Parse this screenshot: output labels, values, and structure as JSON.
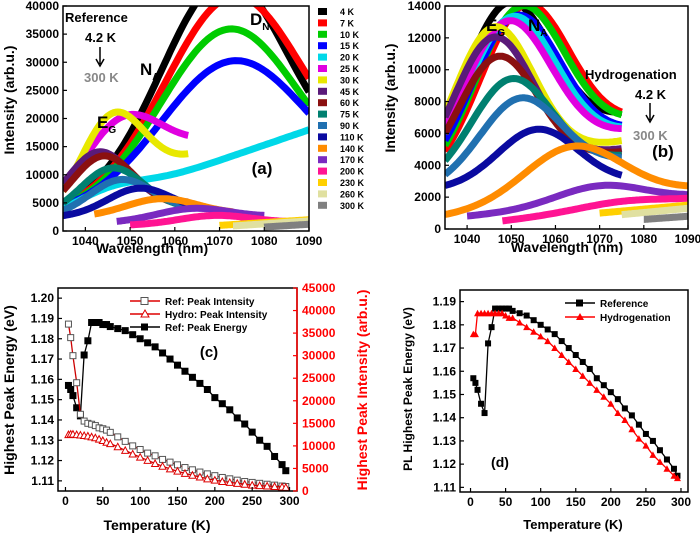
{
  "chart_data": [
    {
      "panel_label": "(a)",
      "type": "area",
      "xlabel": "Wavelength (nm)",
      "ylabel": "Intensity (arb.u.)",
      "xlim": [
        1035,
        1090
      ],
      "ylim": [
        0,
        40000
      ],
      "xticks": [
        1040,
        1050,
        1060,
        1070,
        1080,
        1090
      ],
      "yticks": [
        0,
        5000,
        10000,
        15000,
        20000,
        25000,
        30000,
        35000,
        40000
      ],
      "annotations": {
        "reference": "Reference",
        "t_high": "4.2 K",
        "t_low": "300 K",
        "dn": "D",
        "dn_sub": "N",
        "na": "N",
        "na_sub": "A",
        "eg": "E",
        "eg_sub": "G"
      },
      "legend": [
        "4 K",
        "7 K",
        "10 K",
        "15 K",
        "20 K",
        "25 K",
        "30 K",
        "45 K",
        "60 K",
        "75 K",
        "90 K",
        "110 K",
        "140 K",
        "170 K",
        "200 K",
        "230 K",
        "260 K",
        "300 K"
      ],
      "colors": [
        "#000000",
        "#ff0000",
        "#00cc00",
        "#0000ff",
        "#00d8e8",
        "#e000e0",
        "#e8e800",
        "#5a1a7a",
        "#8b1010",
        "#008070",
        "#2070b0",
        "#0a0aa0",
        "#ff8c00",
        "#7a2ac0",
        "#ff1493",
        "#ffd000",
        "#e0e0a0",
        "#808080"
      ],
      "series": [
        {
          "name": "4 K",
          "x0": 1035,
          "x1": 1090,
          "base0": 3500,
          "base1": 10000,
          "peaks": [
            [
              1071,
              37000,
              14
            ]
          ]
        },
        {
          "name": "7 K",
          "x0": 1035,
          "x1": 1090,
          "base0": 3300,
          "base1": 9000,
          "peaks": [
            [
              1073,
              34500,
              15
            ]
          ]
        },
        {
          "name": "10 K",
          "x0": 1035,
          "x1": 1090,
          "base0": 3100,
          "base1": 8000,
          "peaks": [
            [
              1072,
              29500,
              15
            ]
          ]
        },
        {
          "name": "15 K",
          "x0": 1035,
          "x1": 1090,
          "base0": 3000,
          "base1": 7000,
          "peaks": [
            [
              1073,
              24500,
              16
            ]
          ]
        },
        {
          "name": "20 K",
          "x0": 1035,
          "x1": 1090,
          "base0": 3000,
          "base1": 18000,
          "peaks": [
            [
              1045,
              2000,
              8
            ]
          ]
        },
        {
          "name": "25 K",
          "x0": 1035,
          "x1": 1063,
          "base0": 3200,
          "base1": 14000,
          "peaks": [
            [
              1048,
              12000,
              9
            ]
          ]
        },
        {
          "name": "30 K",
          "x0": 1035,
          "x1": 1063,
          "base0": 3000,
          "base1": 13000,
          "peaks": [
            [
              1046,
              14000,
              7
            ]
          ]
        },
        {
          "name": "45 K",
          "x0": 1035,
          "x1": 1063,
          "base0": 3000,
          "base1": 5000,
          "peaks": [
            [
              1043,
              10500,
              7
            ]
          ]
        },
        {
          "name": "60 K",
          "x0": 1035,
          "x1": 1063,
          "base0": 2800,
          "base1": 4500,
          "peaks": [
            [
              1044,
              10000,
              7
            ]
          ]
        },
        {
          "name": "75 K",
          "x0": 1035,
          "x1": 1063,
          "base0": 2700,
          "base1": 4000,
          "peaks": [
            [
              1046,
              8000,
              7
            ]
          ]
        },
        {
          "name": "90 K",
          "x0": 1035,
          "x1": 1063,
          "base0": 2600,
          "base1": 3800,
          "peaks": [
            [
              1048,
              6000,
              7
            ]
          ]
        },
        {
          "name": "110 K",
          "x0": 1035,
          "x1": 1063,
          "base0": 2500,
          "base1": 3500,
          "peaks": [
            [
              1052,
              4500,
              7
            ]
          ]
        },
        {
          "name": "140 K",
          "x0": 1042,
          "x1": 1073,
          "base0": 2500,
          "base1": 3000,
          "peaks": [
            [
              1057,
              3000,
              8
            ]
          ]
        },
        {
          "name": "170 K",
          "x0": 1047,
          "x1": 1080,
          "base0": 1500,
          "base1": 2500,
          "peaks": [
            [
              1064,
              2000,
              8
            ]
          ]
        },
        {
          "name": "200 K",
          "x0": 1050,
          "x1": 1085,
          "base0": 1000,
          "base1": 1500,
          "peaks": [
            [
              1069,
              1500,
              8
            ]
          ]
        },
        {
          "name": "230 K",
          "x0": 1070,
          "x1": 1090,
          "base0": 1000,
          "base1": 2000,
          "peaks": []
        },
        {
          "name": "260 K",
          "x0": 1073,
          "x1": 1090,
          "base0": 900,
          "base1": 1800,
          "peaks": []
        },
        {
          "name": "300 K",
          "x0": 1080,
          "x1": 1090,
          "base0": 700,
          "base1": 1200,
          "peaks": []
        }
      ]
    },
    {
      "panel_label": "(b)",
      "type": "area",
      "xlabel": "Wavelength (nm)",
      "ylabel": "Intensity (arb.u.)",
      "xlim": [
        1035,
        1090
      ],
      "ylim": [
        0,
        14000
      ],
      "xticks": [
        1040,
        1050,
        1060,
        1070,
        1080,
        1090
      ],
      "yticks": [
        0,
        2000,
        4000,
        6000,
        8000,
        10000,
        12000,
        14000
      ],
      "annotations": {
        "eg": "E",
        "eg_sub": "G",
        "na": "N",
        "na_sub": "A",
        "hydro": "Hydrogenation",
        "t_high": "4.2 K",
        "t_low": "300 K"
      },
      "series": [
        {
          "name": "4 K",
          "x0": 1035,
          "x1": 1075,
          "base0": 3000,
          "base1": 7000,
          "peaks": [
            [
              1049,
              9800,
              10
            ]
          ]
        },
        {
          "name": "7 K",
          "x0": 1035,
          "x1": 1075,
          "base0": 3000,
          "base1": 6500,
          "peaks": [
            [
              1053,
              9500,
              10
            ]
          ]
        },
        {
          "name": "10 K",
          "x0": 1035,
          "x1": 1075,
          "base0": 3000,
          "base1": 6500,
          "peaks": [
            [
              1052,
              9500,
              10
            ]
          ]
        },
        {
          "name": "15 K",
          "x0": 1035,
          "x1": 1075,
          "base0": 3000,
          "base1": 6000,
          "peaks": [
            [
              1051,
              9200,
              10
            ]
          ]
        },
        {
          "name": "20 K",
          "x0": 1035,
          "x1": 1075,
          "base0": 3000,
          "base1": 6000,
          "peaks": [
            [
              1050,
              9200,
              10
            ]
          ]
        },
        {
          "name": "25 K",
          "x0": 1035,
          "x1": 1075,
          "base0": 3000,
          "base1": 6000,
          "peaks": [
            [
              1049,
              9000,
              10
            ]
          ]
        },
        {
          "name": "30 K",
          "x0": 1035,
          "x1": 1075,
          "base0": 3000,
          "base1": 5500,
          "peaks": [
            [
              1046,
              9000,
              9
            ]
          ]
        },
        {
          "name": "45 K",
          "x0": 1035,
          "x1": 1075,
          "base0": 3000,
          "base1": 5000,
          "peaks": [
            [
              1046,
              8500,
              9
            ]
          ]
        },
        {
          "name": "60 K",
          "x0": 1035,
          "x1": 1075,
          "base0": 3000,
          "base1": 4800,
          "peaks": [
            [
              1047,
              7300,
              9
            ]
          ]
        },
        {
          "name": "75 K",
          "x0": 1035,
          "x1": 1075,
          "base0": 2800,
          "base1": 4500,
          "peaks": [
            [
              1050,
              6000,
              9
            ]
          ]
        },
        {
          "name": "90 K",
          "x0": 1035,
          "x1": 1075,
          "base0": 2600,
          "base1": 4300,
          "peaks": [
            [
              1052,
              4900,
              9
            ]
          ]
        },
        {
          "name": "110 K",
          "x0": 1035,
          "x1": 1075,
          "base0": 2500,
          "base1": 3000,
          "peaks": [
            [
              1056,
              3500,
              9
            ]
          ]
        },
        {
          "name": "140 K",
          "x0": 1035,
          "x1": 1090,
          "base0": 800,
          "base1": 2500,
          "peaks": [
            [
              1064,
              3500,
              11
            ]
          ]
        },
        {
          "name": "170 K",
          "x0": 1040,
          "x1": 1090,
          "base0": 800,
          "base1": 2000,
          "peaks": [
            [
              1070,
              1200,
              10
            ]
          ]
        },
        {
          "name": "200 K",
          "x0": 1048,
          "x1": 1090,
          "base0": 500,
          "base1": 1800,
          "peaks": [
            [
              1075,
              400,
              10
            ]
          ]
        },
        {
          "name": "230 K",
          "x0": 1070,
          "x1": 1090,
          "base0": 1000,
          "base1": 1500,
          "peaks": []
        },
        {
          "name": "260 K",
          "x0": 1075,
          "x1": 1090,
          "base0": 900,
          "base1": 1300,
          "peaks": []
        },
        {
          "name": "300 K",
          "x0": 1080,
          "x1": 1090,
          "base0": 600,
          "base1": 800,
          "peaks": []
        }
      ]
    },
    {
      "panel_label": "(c)",
      "type": "scatter",
      "xlabel": "Temperature (K)",
      "ylabel": "Highest Peak Energy (eV)",
      "y2label": "Highest Peak Intensity (arb.u.)",
      "xlim": [
        -10,
        310
      ],
      "ylim": [
        1.105,
        1.205
      ],
      "y2lim": [
        0,
        45000
      ],
      "xticks": [
        0,
        50,
        100,
        150,
        200,
        250,
        300
      ],
      "yticks": [
        1.11,
        1.12,
        1.13,
        1.14,
        1.15,
        1.16,
        1.17,
        1.18,
        1.19,
        1.2
      ],
      "y2ticks": [
        0,
        5000,
        10000,
        15000,
        20000,
        25000,
        30000,
        35000,
        40000,
        45000
      ],
      "legend": [
        "Ref: Peak Intensity",
        "Hydro: Peak Intensity",
        "Ref: Peak Energy"
      ],
      "series": [
        {
          "name": "Ref: Peak Energy",
          "axis": "left",
          "color": "#000000",
          "marker": "square-filled",
          "x": [
            4,
            7,
            10,
            15,
            20,
            25,
            30,
            35,
            40,
            45,
            50,
            55,
            60,
            70,
            80,
            90,
            100,
            110,
            120,
            130,
            140,
            150,
            160,
            170,
            180,
            190,
            200,
            210,
            220,
            230,
            240,
            250,
            260,
            270,
            280,
            290,
            295
          ],
          "y": [
            1.157,
            1.155,
            1.152,
            1.146,
            1.142,
            1.172,
            1.179,
            1.188,
            1.188,
            1.188,
            1.187,
            1.187,
            1.186,
            1.185,
            1.184,
            1.182,
            1.18,
            1.178,
            1.176,
            1.173,
            1.17,
            1.167,
            1.164,
            1.161,
            1.158,
            1.155,
            1.151,
            1.148,
            1.145,
            1.141,
            1.138,
            1.134,
            1.13,
            1.127,
            1.122,
            1.118,
            1.115
          ]
        },
        {
          "name": "Ref: Peak Intensity",
          "axis": "right",
          "color": "#cc0000",
          "marker": "square-open",
          "x": [
            4,
            7,
            10,
            15,
            20,
            25,
            30,
            35,
            40,
            45,
            50,
            55,
            60,
            70,
            80,
            90,
            100,
            110,
            120,
            130,
            140,
            150,
            160,
            170,
            180,
            190,
            200,
            210,
            220,
            230,
            240,
            250,
            260,
            270,
            280,
            290,
            295
          ],
          "y": [
            37000,
            34000,
            30000,
            24000,
            17000,
            15500,
            15000,
            14800,
            14500,
            14000,
            13800,
            13500,
            13000,
            12000,
            11000,
            10000,
            9200,
            8400,
            7800,
            7000,
            6400,
            5800,
            5200,
            4700,
            4200,
            3800,
            3400,
            3000,
            2700,
            2400,
            2100,
            1900,
            1700,
            1500,
            1300,
            1100,
            1000
          ]
        },
        {
          "name": "Hydro: Peak Intensity",
          "axis": "right",
          "color": "#cc0000",
          "marker": "triangle-open",
          "x": [
            4,
            7,
            10,
            15,
            20,
            25,
            30,
            35,
            40,
            45,
            50,
            55,
            60,
            70,
            80,
            90,
            100,
            110,
            120,
            130,
            140,
            150,
            160,
            170,
            180,
            190,
            200,
            210,
            220,
            230,
            240,
            250,
            260,
            270,
            280,
            290,
            295
          ],
          "y": [
            12500,
            12600,
            12600,
            12500,
            12400,
            12300,
            12200,
            12000,
            11800,
            11500,
            11200,
            10800,
            10500,
            9800,
            9000,
            8200,
            7500,
            6800,
            6100,
            5500,
            4900,
            4400,
            3900,
            3500,
            3100,
            2700,
            2400,
            2100,
            1900,
            1700,
            1500,
            1300,
            1200,
            1100,
            1000,
            900,
            800
          ]
        }
      ]
    },
    {
      "panel_label": "(d)",
      "type": "line",
      "xlabel": "Temperature (K)",
      "ylabel": "PL Highest Peak Energy (eV)",
      "xlim": [
        -15,
        310
      ],
      "ylim": [
        1.108,
        1.195
      ],
      "xticks": [
        0,
        50,
        100,
        150,
        200,
        250,
        300
      ],
      "yticks": [
        1.11,
        1.12,
        1.13,
        1.14,
        1.15,
        1.16,
        1.17,
        1.18,
        1.19
      ],
      "legend": [
        "Reference",
        "Hydrogenation"
      ],
      "series": [
        {
          "name": "Reference",
          "color": "#000000",
          "marker": "square",
          "x": [
            4,
            7,
            10,
            15,
            20,
            25,
            30,
            35,
            40,
            45,
            50,
            55,
            60,
            70,
            80,
            90,
            100,
            110,
            120,
            130,
            140,
            150,
            160,
            170,
            180,
            190,
            200,
            210,
            220,
            230,
            240,
            250,
            260,
            270,
            280,
            290,
            295
          ],
          "y": [
            1.157,
            1.155,
            1.152,
            1.146,
            1.142,
            1.172,
            1.179,
            1.187,
            1.187,
            1.187,
            1.187,
            1.187,
            1.186,
            1.185,
            1.184,
            1.182,
            1.18,
            1.178,
            1.176,
            1.173,
            1.17,
            1.167,
            1.164,
            1.161,
            1.157,
            1.154,
            1.151,
            1.148,
            1.144,
            1.141,
            1.137,
            1.133,
            1.13,
            1.126,
            1.122,
            1.118,
            1.115
          ]
        },
        {
          "name": "Hydrogenation",
          "color": "#ff0000",
          "marker": "triangle",
          "x": [
            4,
            7,
            10,
            15,
            20,
            25,
            30,
            35,
            40,
            45,
            50,
            55,
            60,
            70,
            80,
            90,
            100,
            110,
            120,
            130,
            140,
            150,
            160,
            170,
            180,
            190,
            200,
            210,
            220,
            230,
            240,
            250,
            260,
            270,
            280,
            290,
            295
          ],
          "y": [
            1.176,
            1.176,
            1.185,
            1.185,
            1.185,
            1.185,
            1.185,
            1.185,
            1.185,
            1.185,
            1.184,
            1.183,
            1.183,
            1.181,
            1.179,
            1.177,
            1.175,
            1.173,
            1.17,
            1.167,
            1.164,
            1.161,
            1.158,
            1.155,
            1.152,
            1.149,
            1.146,
            1.142,
            1.139,
            1.135,
            1.131,
            1.128,
            1.124,
            1.121,
            1.118,
            1.115,
            1.114
          ]
        }
      ]
    }
  ]
}
